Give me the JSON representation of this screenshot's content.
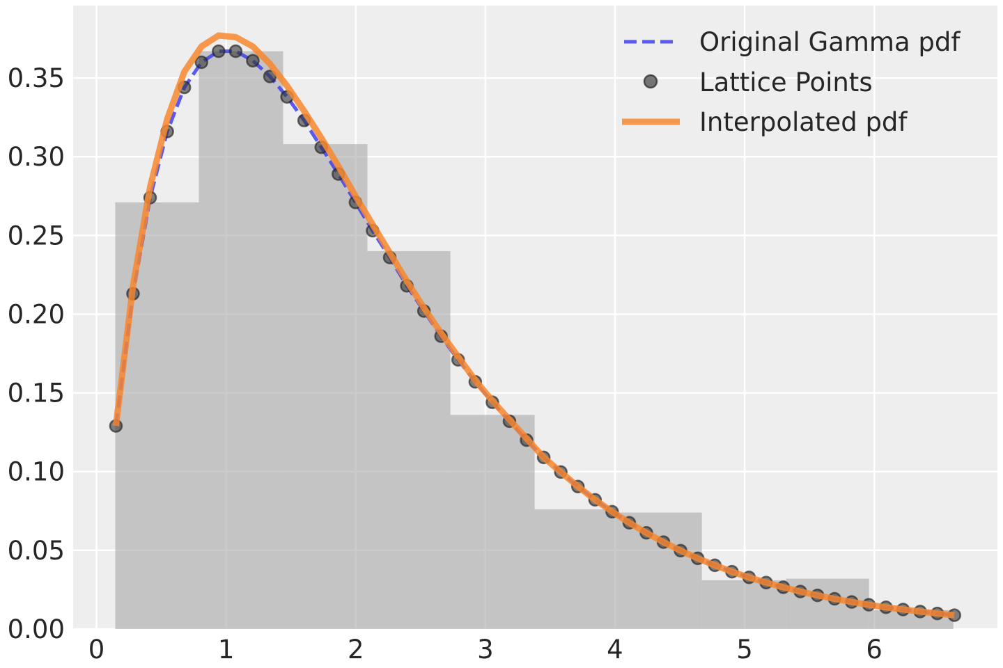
{
  "chart_data": {
    "type": "line",
    "title": "",
    "xlabel": "",
    "ylabel": "",
    "xlim": [
      -0.18,
      6.95
    ],
    "ylim": [
      0,
      0.396
    ],
    "grid": true,
    "legend_placement": "top-right",
    "x_ticks": [
      "0",
      "1",
      "2",
      "3",
      "4",
      "5",
      "6"
    ],
    "x_tick_values": [
      0,
      1,
      2,
      3,
      4,
      5,
      6
    ],
    "y_ticks": [
      "0.00",
      "0.05",
      "0.10",
      "0.15",
      "0.20",
      "0.25",
      "0.30",
      "0.35"
    ],
    "y_tick_values": [
      0,
      0.05,
      0.1,
      0.15,
      0.2,
      0.25,
      0.3,
      0.35
    ],
    "histogram": {
      "bin_edges": [
        0.145,
        0.79,
        1.44,
        2.09,
        2.73,
        3.38,
        4.02,
        4.67,
        5.32,
        5.96,
        6.61
      ],
      "heights": [
        0.271,
        0.367,
        0.308,
        0.24,
        0.136,
        0.076,
        0.074,
        0.031,
        0.032,
        0.012
      ],
      "color": "#a8a8a8"
    },
    "x": [
      0.15,
      0.282,
      0.414,
      0.546,
      0.678,
      0.81,
      0.942,
      1.074,
      1.206,
      1.338,
      1.47,
      1.602,
      1.734,
      1.866,
      1.998,
      2.13,
      2.262,
      2.394,
      2.526,
      2.658,
      2.79,
      2.922,
      3.054,
      3.186,
      3.318,
      3.45,
      3.582,
      3.714,
      3.846,
      3.978,
      4.11,
      4.242,
      4.374,
      4.506,
      4.638,
      4.77,
      4.902,
      5.034,
      5.166,
      5.298,
      5.43,
      5.562,
      5.694,
      5.826,
      5.958,
      6.09,
      6.222,
      6.354,
      6.486,
      6.618
    ],
    "series": [
      {
        "name": "Original Gamma pdf",
        "style": "dashed",
        "color": "#4040ee",
        "values": [
          0.129,
          0.213,
          0.274,
          0.316,
          0.344,
          0.36,
          0.367,
          0.367,
          0.361,
          0.351,
          0.338,
          0.323,
          0.306,
          0.289,
          0.271,
          0.253,
          0.236,
          0.218,
          0.202,
          0.186,
          0.171,
          0.157,
          0.144,
          0.132,
          0.12,
          0.109,
          0.0997,
          0.0905,
          0.0821,
          0.0745,
          0.0675,
          0.0611,
          0.0552,
          0.0498,
          0.0449,
          0.0405,
          0.0364,
          0.0328,
          0.0295,
          0.0265,
          0.0238,
          0.0214,
          0.0192,
          0.0172,
          0.0154,
          0.0138,
          0.0124,
          0.0111,
          0.0099,
          0.0088
        ]
      },
      {
        "name": "Lattice Points",
        "style": "markers",
        "color": "#333333",
        "values": [
          0.129,
          0.213,
          0.274,
          0.316,
          0.344,
          0.36,
          0.367,
          0.367,
          0.361,
          0.351,
          0.338,
          0.323,
          0.306,
          0.289,
          0.271,
          0.253,
          0.236,
          0.218,
          0.202,
          0.186,
          0.171,
          0.157,
          0.144,
          0.132,
          0.12,
          0.109,
          0.0997,
          0.0905,
          0.0821,
          0.0745,
          0.0675,
          0.0611,
          0.0552,
          0.0498,
          0.0449,
          0.0405,
          0.0364,
          0.0328,
          0.0295,
          0.0265,
          0.0238,
          0.0214,
          0.0192,
          0.0172,
          0.0154,
          0.0138,
          0.0124,
          0.0111,
          0.0099,
          0.0088
        ]
      },
      {
        "name": "Interpolated pdf",
        "style": "solid",
        "color": "#f7872f",
        "values": [
          0.129,
          0.218,
          0.281,
          0.324,
          0.354,
          0.37,
          0.377,
          0.376,
          0.37,
          0.359,
          0.345,
          0.329,
          0.312,
          0.294,
          0.275,
          0.257,
          0.239,
          0.221,
          0.204,
          0.188,
          0.173,
          0.158,
          0.145,
          0.133,
          0.121,
          0.109,
          0.0997,
          0.0905,
          0.0821,
          0.0745,
          0.0675,
          0.0611,
          0.0552,
          0.0498,
          0.0449,
          0.0405,
          0.0364,
          0.0328,
          0.0295,
          0.0265,
          0.0238,
          0.0214,
          0.0192,
          0.0172,
          0.0154,
          0.0138,
          0.0124,
          0.0111,
          0.0099,
          0.0088
        ]
      }
    ]
  }
}
